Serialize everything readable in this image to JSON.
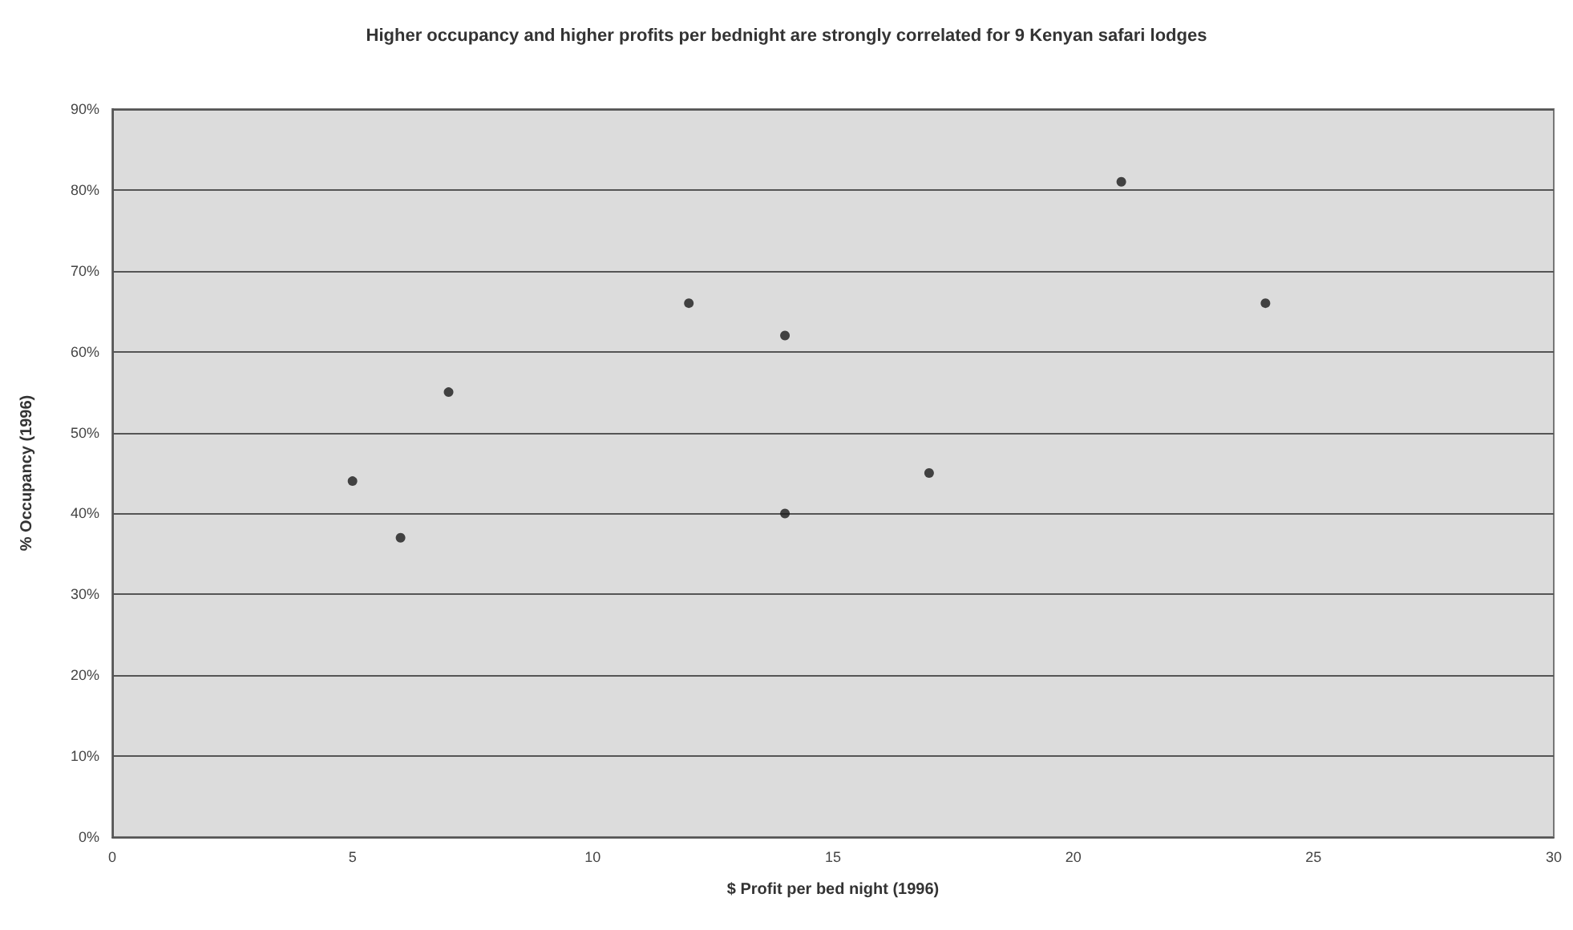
{
  "chart_data": {
    "type": "scatter",
    "title": "Higher occupancy and higher profits per bednight are strongly correlated for 9 Kenyan safari lodges",
    "xlabel": "$ Profit per bed night (1996)",
    "ylabel": "% Occupancy (1996)",
    "x": [
      5,
      6,
      7,
      12,
      14,
      14,
      17,
      21,
      24
    ],
    "values": [
      44,
      37,
      55,
      66,
      62,
      40,
      45,
      81,
      66
    ],
    "color": "#1a1a1a",
    "marker": "circle",
    "grid": "y",
    "xlim": [
      0,
      30
    ],
    "xticks": [
      0,
      5,
      10,
      15,
      20,
      25,
      30
    ],
    "ylim": [
      0,
      90
    ],
    "yticks": [
      {
        "value": 0,
        "label": "0%"
      },
      {
        "value": 10,
        "label": "10%"
      },
      {
        "value": 20,
        "label": "20%"
      },
      {
        "value": 30,
        "label": "30%"
      },
      {
        "value": 40,
        "label": "40%"
      },
      {
        "value": 50,
        "label": "50%"
      },
      {
        "value": 60,
        "label": "60%"
      },
      {
        "value": 70,
        "label": "70%"
      },
      {
        "value": 80,
        "label": "80%"
      },
      {
        "value": 90,
        "label": "90%"
      }
    ]
  }
}
